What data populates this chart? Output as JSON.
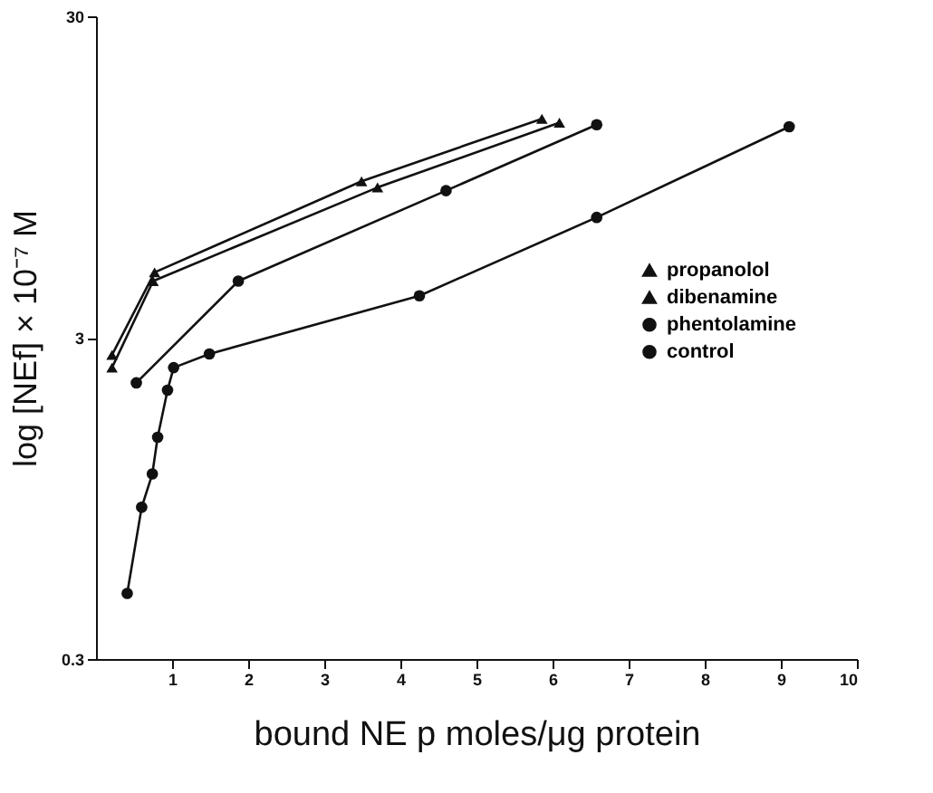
{
  "chart_data": {
    "type": "line",
    "xlabel": "bound  NE   p moles/μg   protein",
    "ylabel": "log [NEf] × 10⁻⁷ M",
    "xlim": [
      0,
      10
    ],
    "xticks": [
      1,
      2,
      3,
      4,
      5,
      6,
      7,
      8,
      9,
      10
    ],
    "ylim": [
      0.3,
      30
    ],
    "yticks": [
      0.3,
      3,
      30
    ],
    "log": true,
    "grid": false,
    "legend": "right",
    "series": [
      {
        "name": "propanolol",
        "color": "#111111",
        "marker": "triangle",
        "x": [
          0.21,
          0.77,
          3.49,
          5.86
        ],
        "values": [
          2.65,
          4.79,
          9.2,
          14.4
        ]
      },
      {
        "name": "dibenamine",
        "color": "#111111",
        "marker": "triangle",
        "x": [
          0.21,
          0.75,
          3.7,
          6.09
        ],
        "values": [
          2.42,
          4.5,
          8.8,
          14.0
        ]
      },
      {
        "name": "phentolamine",
        "color": "#111111",
        "marker": "circle",
        "x": [
          0.53,
          1.87,
          4.6,
          6.58
        ],
        "values": [
          2.17,
          4.5,
          8.6,
          13.8
        ]
      },
      {
        "name": "control",
        "color": "#111111",
        "marker": "circle",
        "x": [
          0.41,
          0.6,
          0.74,
          0.81,
          0.94,
          1.02,
          1.49,
          4.25,
          6.58,
          9.11
        ],
        "values": [
          0.48,
          0.89,
          1.13,
          1.47,
          2.06,
          2.42,
          2.67,
          4.05,
          7.1,
          13.6
        ]
      }
    ]
  }
}
